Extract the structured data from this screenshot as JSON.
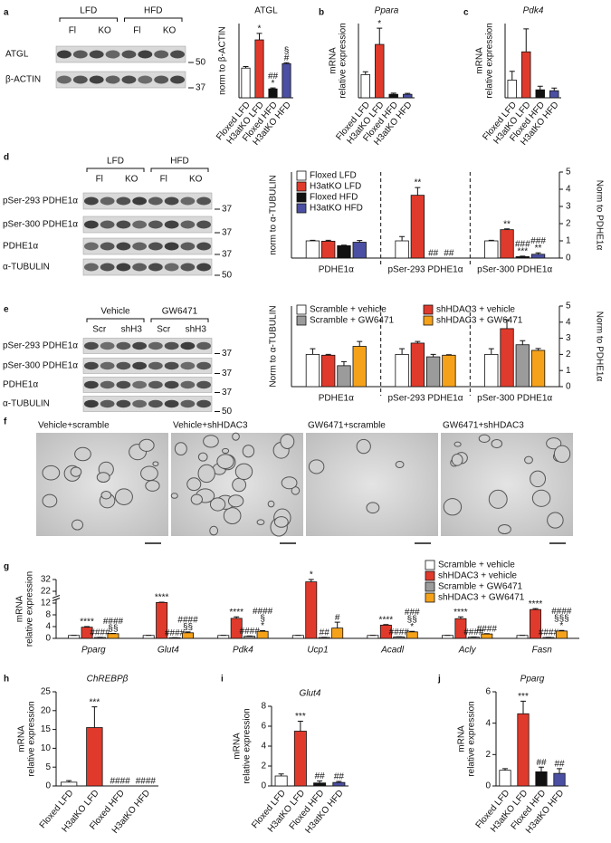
{
  "panel_letters": [
    "a",
    "b",
    "c",
    "d",
    "e",
    "f",
    "g",
    "h",
    "i",
    "j"
  ],
  "blots": [
    {
      "groups": [
        "LFD",
        "HFD"
      ],
      "lanes": [
        "Fl",
        "KO",
        "Fl",
        "KO"
      ],
      "rows": [
        "ATGL",
        "β-ACTIN"
      ],
      "markers": [
        50,
        37
      ]
    },
    {
      "groups": [
        "LFD",
        "HFD"
      ],
      "lanes": [
        "Fl",
        "KO",
        "Fl",
        "KO"
      ],
      "rows": [
        "pSer-293 PDHE1α",
        "pSer-300 PDHE1α",
        "PDHE1α",
        "α-TUBULIN"
      ],
      "markers": [
        37,
        37,
        37,
        50
      ]
    },
    {
      "groups": [
        "Vehicle",
        "GW6471"
      ],
      "lanes": [
        "Scr",
        "shH3",
        "Scr",
        "shH3"
      ],
      "rows": [
        "pSer-293 PDHE1α",
        "pSer-300 PDHE1α",
        "PDHE1α",
        "α-TUBULIN"
      ],
      "markers": [
        37,
        37,
        37,
        50
      ]
    }
  ],
  "micrographs": {
    "labels": [
      "Vehicle+scramble",
      "Vehicle+shHDAC3",
      "GW6471+scramble",
      "GW6471+shHDAC3"
    ]
  },
  "chart_data": [
    {
      "type": "bar",
      "title": "ATGL",
      "ylabel": "norm to β-ACTIN",
      "categories": [
        "Floxed LFD",
        "H3atKO LFD",
        "Floxed HFD",
        "H3atKO HFD"
      ],
      "values": [
        1.0,
        1.95,
        0.3,
        1.15
      ],
      "errors": [
        0.05,
        0.22,
        0.03,
        0.03
      ],
      "colors": [
        "#ffffff",
        "#e03a2c",
        "#111111",
        "#4a4fa3"
      ],
      "annotations": [
        null,
        [
          "*"
        ],
        [
          "##",
          "*"
        ],
        [
          "§",
          "#"
        ]
      ],
      "ylim": [
        0,
        2.5
      ]
    },
    {
      "type": "bar",
      "title": "Ppara",
      "title_italic": true,
      "ylabel": [
        "mRNA",
        "relative expression"
      ],
      "categories": [
        "Floxed LFD",
        "H3atKO LFD",
        "Floxed HFD",
        "H3atKO HFD"
      ],
      "values": [
        1.0,
        2.3,
        0.15,
        0.15
      ],
      "errors": [
        0.12,
        0.7,
        0.05,
        0.04
      ],
      "colors": [
        "#ffffff",
        "#e03a2c",
        "#111111",
        "#4a4fa3"
      ],
      "annotations": [
        null,
        [
          "*"
        ],
        null,
        null
      ],
      "ylim": [
        0,
        3.2
      ]
    },
    {
      "type": "bar",
      "title": "Pdk4",
      "title_italic": true,
      "ylabel": [
        "mRNA",
        "relative expression"
      ],
      "categories": [
        "Floxed LFD",
        "H3atKO LFD",
        "Floxed HFD",
        "H3atKO HFD"
      ],
      "values": [
        1.0,
        2.6,
        0.45,
        0.4
      ],
      "errors": [
        0.5,
        1.3,
        0.2,
        0.15
      ],
      "colors": [
        "#ffffff",
        "#e03a2c",
        "#111111",
        "#4a4fa3"
      ],
      "annotations": [
        null,
        null,
        null,
        null
      ],
      "ylim": [
        0,
        4.2
      ]
    },
    {
      "type": "grouped_bar",
      "ylabel": "norm to α-TUBULIN",
      "y2label": "Norm to PDHE1α",
      "categories": [
        "PDHE1α",
        "pSer-293 PDHE1α",
        "pSer-300 PDHE1α"
      ],
      "dividers": true,
      "legend": "top-left",
      "legend_columns": 1,
      "y2lim": [
        0,
        5
      ],
      "y2ticks": [
        0,
        1,
        2,
        3,
        4,
        5
      ],
      "series": [
        {
          "name": "Floxed LFD",
          "color": "#ffffff",
          "axis": "y2",
          "values": [
            1.0,
            1.0,
            1.0
          ],
          "errors": [
            0.03,
            0.25,
            0.03
          ],
          "annotations": [
            null,
            null,
            null
          ]
        },
        {
          "name": "H3atKO LFD",
          "color": "#e03a2c",
          "axis": "y2",
          "values": [
            0.98,
            3.65,
            1.65
          ],
          "errors": [
            0.05,
            0.45,
            0.05
          ],
          "annotations": [
            null,
            [
              "**"
            ],
            [
              "**"
            ]
          ]
        },
        {
          "name": "Floxed HFD",
          "color": "#111111",
          "axis": "y2",
          "values": [
            0.72,
            0,
            0.08
          ],
          "errors": [
            0.03,
            null,
            0.03
          ],
          "annotations": [
            null,
            [
              "##"
            ],
            [
              "###",
              "***"
            ]
          ]
        },
        {
          "name": "H3atKO HFD",
          "color": "#4a4fa3",
          "axis": "y2",
          "values": [
            0.92,
            0,
            0.22
          ],
          "errors": [
            0.1,
            null,
            0.08
          ],
          "annotations": [
            null,
            [
              "##"
            ],
            [
              "###",
              "**"
            ]
          ]
        }
      ]
    },
    {
      "type": "grouped_bar",
      "ylabel": "Norm to α-TUBULIN",
      "y2label": "Norm to PDHE1α",
      "categories": [
        "PDHE1α",
        "pSer-293 PDHE1α",
        "pSer-300 PDHE1α"
      ],
      "dividers": true,
      "legend": "top-left",
      "legend_columns": 2,
      "y2lim": [
        0,
        5
      ],
      "y2ticks": [
        0,
        1,
        2,
        3,
        4,
        5
      ],
      "series": [
        {
          "name": "Scramble + vehicle",
          "color": "#ffffff",
          "axis": "y2",
          "values": [
            2.0,
            2.0,
            2.0
          ],
          "errors": [
            0.35,
            0.35,
            0.35
          ]
        },
        {
          "name": "shHDAC3 + vehicle",
          "color": "#e03a2c",
          "axis": "y2",
          "values": [
            1.95,
            2.7,
            3.6
          ],
          "errors": [
            0.05,
            0.1,
            0.55
          ]
        },
        {
          "name": "Scramble + GW6471",
          "color": "#9b9b9b",
          "axis": "y2",
          "values": [
            1.3,
            1.85,
            2.6
          ],
          "errors": [
            0.25,
            0.15,
            0.25
          ]
        },
        {
          "name": "shHDAC3 + GW6471",
          "color": "#f5a21a",
          "axis": "y2",
          "values": [
            2.5,
            1.95,
            2.25
          ],
          "errors": [
            0.3,
            0.03,
            0.12
          ]
        }
      ]
    },
    {
      "type": "grouped_bar",
      "ylabel": [
        "mRNA",
        "relative expression"
      ],
      "categories": [
        "Pparg",
        "Glut4",
        "Pdk4",
        "Ucp1",
        "Acadl",
        "Acly",
        "Fasn"
      ],
      "category_italic": true,
      "axis_break": true,
      "legend": "top-right",
      "legend_columns": 1,
      "ylim": [
        0,
        32
      ],
      "yticks": [
        0,
        4,
        8,
        12,
        22,
        32
      ],
      "series": [
        {
          "name": "Scramble + vehicle",
          "color": "#ffffff",
          "values": [
            1,
            1,
            1,
            1,
            1,
            1,
            1
          ],
          "errors": [
            0.05,
            0.05,
            0.05,
            0.05,
            0.05,
            0.05,
            0.05
          ]
        },
        {
          "name": "shHDAC3 + vehicle",
          "color": "#e03a2c",
          "values": [
            3.8,
            12.5,
            6.8,
            30,
            4.5,
            6.7,
            9.8
          ],
          "errors": [
            0.2,
            0.3,
            0.5,
            2,
            0.2,
            0.6,
            0.3
          ],
          "annotations": [
            [
              "****"
            ],
            [
              "****"
            ],
            [
              "****"
            ],
            [
              "*"
            ],
            [
              "****"
            ],
            [
              "****"
            ],
            [
              "****"
            ]
          ]
        },
        {
          "name": "Scramble + GW6471",
          "color": "#9b9b9b",
          "values": [
            0.3,
            0.2,
            0.7,
            0.3,
            0.5,
            0.4,
            0.3
          ],
          "errors": [
            0.05,
            0.03,
            0.1,
            0.05,
            0.05,
            0.05,
            0.05
          ],
          "annotations": [
            [
              "####"
            ],
            [
              "####"
            ],
            [
              "####"
            ],
            [
              "##"
            ],
            [
              "####"
            ],
            [
              "####"
            ],
            [
              "####"
            ]
          ]
        },
        {
          "name": "shHDAC3 + GW6471",
          "color": "#f5a21a",
          "values": [
            1.6,
            1.9,
            2.4,
            3.5,
            2.2,
            1.5,
            2.5
          ],
          "errors": [
            0.1,
            0.3,
            0.2,
            2.0,
            0.2,
            0.1,
            0.2
          ],
          "annotations": [
            [
              "####",
              "§§"
            ],
            [
              "####",
              "§§"
            ],
            [
              "####",
              "§",
              "*"
            ],
            [
              "#"
            ],
            [
              "###",
              "§§",
              "*"
            ],
            [
              "####"
            ],
            [
              "####",
              "§§§",
              "*"
            ]
          ]
        }
      ]
    },
    {
      "type": "bar",
      "title": "ChREBPβ",
      "title_italic": true,
      "ylabel": [
        "mRNA",
        "relative expression"
      ],
      "categories": [
        "Floxed LFD",
        "H3atKO LFD",
        "Floxed HFD",
        "H3atKO HFD"
      ],
      "values": [
        1.0,
        15.5,
        0,
        0
      ],
      "errors": [
        0.4,
        5.5,
        null,
        null
      ],
      "colors": [
        "#ffffff",
        "#e03a2c",
        "#111111",
        "#4a4fa3"
      ],
      "annotations": [
        null,
        [
          "***"
        ],
        [
          "####"
        ],
        [
          "####"
        ]
      ],
      "ylim": [
        0,
        25
      ],
      "yticks": [
        0,
        5,
        10,
        15,
        20,
        25
      ]
    },
    {
      "type": "bar",
      "title": "Glut4",
      "title_italic": true,
      "ylabel": [
        "mRNA",
        "relative expression"
      ],
      "categories": [
        "Floxed LFD",
        "H3atKO LFD",
        "Floxed HFD",
        "H3atKO HFD"
      ],
      "values": [
        1.0,
        5.5,
        0.3,
        0.35
      ],
      "errors": [
        0.2,
        1.0,
        0.2,
        0.1
      ],
      "colors": [
        "#ffffff",
        "#e03a2c",
        "#111111",
        "#4a4fa3"
      ],
      "annotations": [
        null,
        [
          "***"
        ],
        [
          "##"
        ],
        [
          "##"
        ]
      ],
      "ylim": [
        0,
        8
      ],
      "yticks": [
        0,
        2,
        4,
        6,
        8
      ]
    },
    {
      "type": "bar",
      "title": "Pparg",
      "title_italic": true,
      "ylabel": [
        "mRNA",
        "relative expression"
      ],
      "categories": [
        "Floxed LFD",
        "H3atKO LFD",
        "Floxed HFD",
        "H3atKO HFD"
      ],
      "values": [
        1.0,
        4.6,
        0.9,
        0.8
      ],
      "errors": [
        0.1,
        0.8,
        0.3,
        0.3
      ],
      "colors": [
        "#ffffff",
        "#e03a2c",
        "#111111",
        "#4a4fa3"
      ],
      "annotations": [
        null,
        [
          "***"
        ],
        [
          "##"
        ],
        [
          "##"
        ]
      ],
      "ylim": [
        0,
        6
      ],
      "yticks": [
        0,
        2,
        4,
        6
      ]
    }
  ]
}
